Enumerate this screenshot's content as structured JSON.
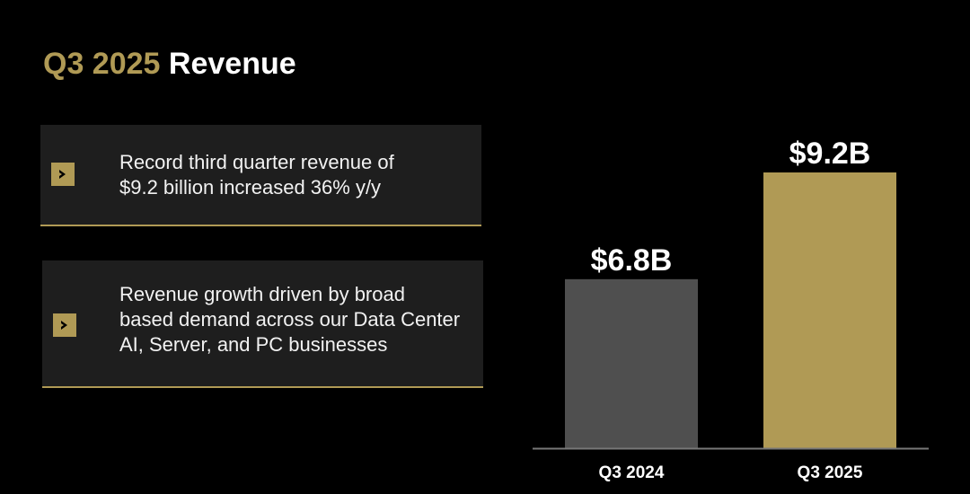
{
  "title": {
    "accent": "Q3 2025",
    "main": "Revenue"
  },
  "bullets": [
    {
      "icon": "chevron-right-icon",
      "lines": [
        "Record third quarter revenue of",
        "$9.2 billion increased 36% y/y"
      ]
    },
    {
      "icon": "chevron-right-icon",
      "lines": [
        "Revenue growth driven by broad",
        "based demand across our Data Center",
        "AI, Server, and PC businesses"
      ]
    }
  ],
  "colors": {
    "accent": "#b09a55",
    "prior_bar": "#4f4f4f",
    "background": "#000000",
    "box": "#1e1e1e"
  },
  "chart_data": {
    "type": "bar",
    "categories": [
      "Q3 2024",
      "Q3 2025"
    ],
    "values": [
      6.8,
      9.2
    ],
    "data_labels": [
      "$6.8B",
      "$9.2B"
    ],
    "bar_colors": [
      "#4f4f4f",
      "#b09a55"
    ],
    "ylim": [
      3,
      9.2
    ],
    "grid": false,
    "title": "",
    "xlabel": "",
    "ylabel": ""
  }
}
